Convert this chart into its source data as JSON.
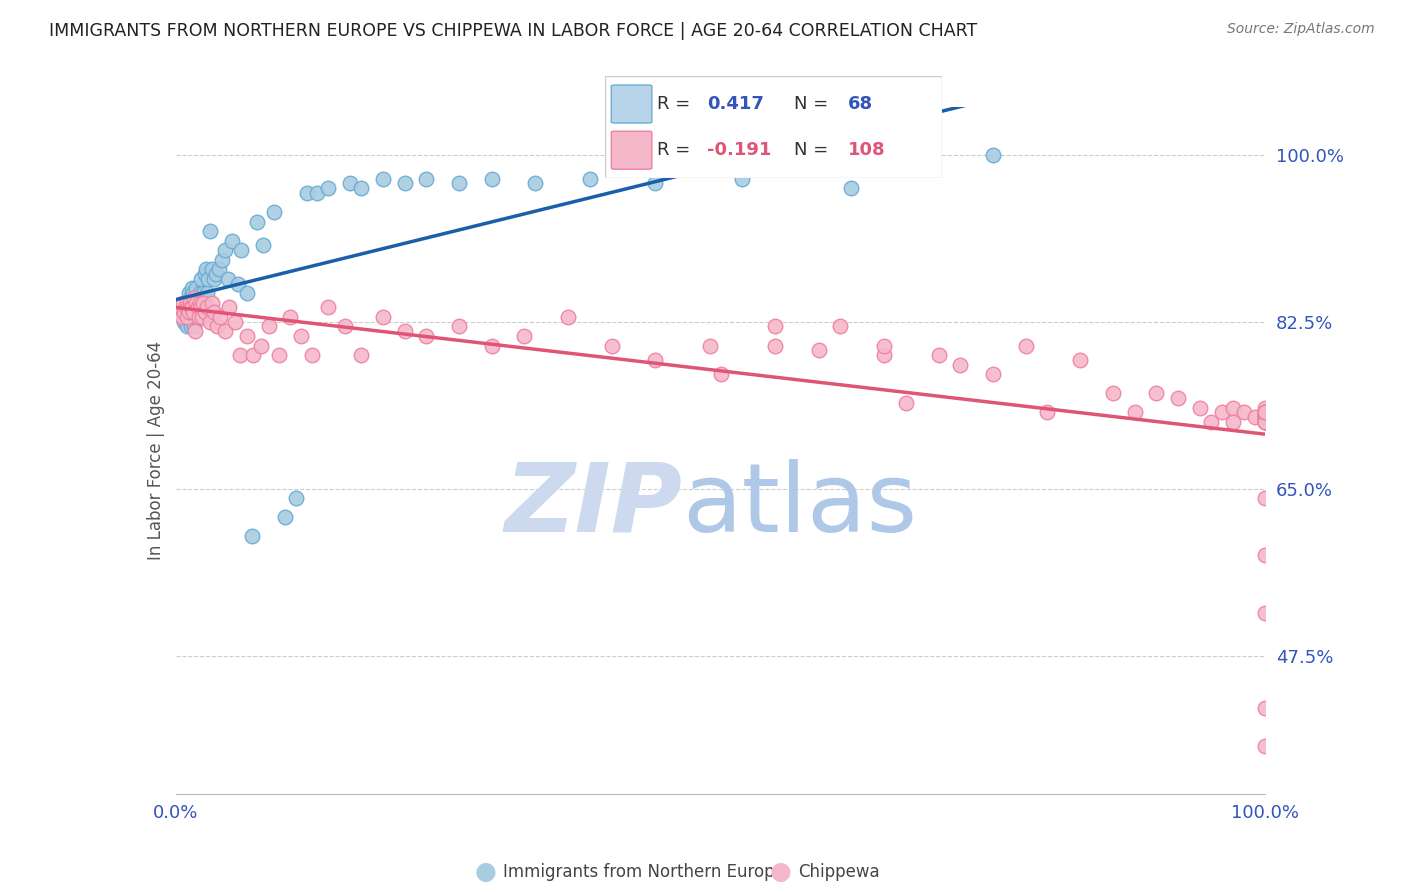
{
  "title": "IMMIGRANTS FROM NORTHERN EUROPE VS CHIPPEWA IN LABOR FORCE | AGE 20-64 CORRELATION CHART",
  "source": "Source: ZipAtlas.com",
  "ylabel": "In Labor Force | Age 20-64",
  "xlim": [
    0.0,
    1.0
  ],
  "ylim": [
    0.33,
    1.05
  ],
  "ytick_labels": [
    "100.0%",
    "82.5%",
    "65.0%",
    "47.5%"
  ],
  "ytick_values": [
    1.0,
    0.825,
    0.65,
    0.475
  ],
  "legend1_R": "0.417",
  "legend1_N": "68",
  "legend2_R": "-0.191",
  "legend2_N": "108",
  "blue_marker_color": "#a8cce0",
  "blue_edge_color": "#6aaad4",
  "pink_marker_color": "#f5b8cb",
  "pink_edge_color": "#f07fa0",
  "trend_blue": "#1a5faa",
  "trend_pink": "#e05575",
  "watermark_zip_color": "#ccd9ee",
  "watermark_atlas_color": "#b0c8e8",
  "grid_color": "#cccccc",
  "legend_blue_fill": "#b8d4ea",
  "legend_blue_edge": "#6aaad4",
  "legend_pink_fill": "#f5b8cb",
  "legend_pink_edge": "#f07fa0",
  "text_dark": "#222222",
  "text_blue": "#3355bb",
  "text_pink": "#e05575",
  "text_gray": "#777777",
  "blue_x": [
    0.005,
    0.007,
    0.008,
    0.009,
    0.01,
    0.01,
    0.011,
    0.012,
    0.012,
    0.013,
    0.013,
    0.014,
    0.015,
    0.015,
    0.015,
    0.016,
    0.016,
    0.017,
    0.017,
    0.018,
    0.018,
    0.019,
    0.019,
    0.02,
    0.021,
    0.022,
    0.023,
    0.024,
    0.025,
    0.026,
    0.027,
    0.028,
    0.029,
    0.03,
    0.031,
    0.033,
    0.035,
    0.037,
    0.04,
    0.042,
    0.045,
    0.048,
    0.052,
    0.057,
    0.06,
    0.065,
    0.07,
    0.075,
    0.08,
    0.09,
    0.1,
    0.11,
    0.12,
    0.13,
    0.14,
    0.16,
    0.17,
    0.19,
    0.21,
    0.23,
    0.26,
    0.29,
    0.33,
    0.38,
    0.44,
    0.52,
    0.62,
    0.75
  ],
  "blue_y": [
    0.835,
    0.84,
    0.825,
    0.83,
    0.84,
    0.82,
    0.845,
    0.83,
    0.855,
    0.84,
    0.85,
    0.82,
    0.845,
    0.83,
    0.86,
    0.84,
    0.855,
    0.84,
    0.82,
    0.845,
    0.85,
    0.83,
    0.86,
    0.84,
    0.85,
    0.855,
    0.87,
    0.84,
    0.855,
    0.84,
    0.875,
    0.88,
    0.855,
    0.87,
    0.92,
    0.88,
    0.87,
    0.875,
    0.88,
    0.89,
    0.9,
    0.87,
    0.91,
    0.865,
    0.9,
    0.855,
    0.6,
    0.93,
    0.905,
    0.94,
    0.62,
    0.64,
    0.96,
    0.96,
    0.965,
    0.97,
    0.965,
    0.975,
    0.97,
    0.975,
    0.97,
    0.975,
    0.97,
    0.975,
    0.97,
    0.975,
    0.965,
    1.0
  ],
  "pink_x": [
    0.004,
    0.005,
    0.006,
    0.007,
    0.008,
    0.009,
    0.01,
    0.01,
    0.011,
    0.012,
    0.013,
    0.014,
    0.015,
    0.016,
    0.017,
    0.018,
    0.019,
    0.02,
    0.021,
    0.022,
    0.023,
    0.024,
    0.025,
    0.027,
    0.029,
    0.031,
    0.033,
    0.035,
    0.038,
    0.041,
    0.045,
    0.049,
    0.054,
    0.059,
    0.065,
    0.071,
    0.078,
    0.086,
    0.095,
    0.105,
    0.115,
    0.125,
    0.14,
    0.155,
    0.17,
    0.19,
    0.21,
    0.23,
    0.26,
    0.29,
    0.32,
    0.36,
    0.4,
    0.44,
    0.49,
    0.5,
    0.55,
    0.55,
    0.59,
    0.61,
    0.65,
    0.65,
    0.67,
    0.7,
    0.72,
    0.75,
    0.78,
    0.8,
    0.83,
    0.86,
    0.88,
    0.9,
    0.92,
    0.94,
    0.95,
    0.96,
    0.97,
    0.97,
    0.98,
    0.99,
    1.0,
    1.0,
    1.0,
    1.0,
    1.0,
    1.0,
    1.0,
    1.0,
    1.0,
    1.0,
    1.0,
    1.0,
    1.0,
    1.0,
    1.0,
    1.0,
    1.0,
    1.0,
    1.0,
    1.0,
    1.0,
    1.0,
    1.0,
    1.0,
    1.0,
    1.0,
    1.0,
    1.0
  ],
  "pink_y": [
    0.835,
    0.84,
    0.83,
    0.845,
    0.835,
    0.84,
    0.845,
    0.83,
    0.84,
    0.835,
    0.845,
    0.84,
    0.84,
    0.835,
    0.85,
    0.815,
    0.845,
    0.84,
    0.83,
    0.845,
    0.84,
    0.83,
    0.845,
    0.835,
    0.84,
    0.825,
    0.845,
    0.835,
    0.82,
    0.83,
    0.815,
    0.84,
    0.825,
    0.79,
    0.81,
    0.79,
    0.8,
    0.82,
    0.79,
    0.83,
    0.81,
    0.79,
    0.84,
    0.82,
    0.79,
    0.83,
    0.815,
    0.81,
    0.82,
    0.8,
    0.81,
    0.83,
    0.8,
    0.785,
    0.8,
    0.77,
    0.8,
    0.82,
    0.795,
    0.82,
    0.79,
    0.8,
    0.74,
    0.79,
    0.78,
    0.77,
    0.8,
    0.73,
    0.785,
    0.75,
    0.73,
    0.75,
    0.745,
    0.735,
    0.72,
    0.73,
    0.735,
    0.72,
    0.73,
    0.725,
    0.725,
    0.73,
    0.73,
    0.72,
    0.73,
    0.73,
    0.725,
    0.73,
    0.725,
    0.73,
    0.73,
    0.72,
    0.725,
    0.73,
    0.725,
    0.735,
    0.73,
    0.725,
    0.73,
    0.72,
    0.52,
    0.42,
    0.58,
    0.72,
    0.73,
    0.64,
    0.38,
    0.73
  ]
}
